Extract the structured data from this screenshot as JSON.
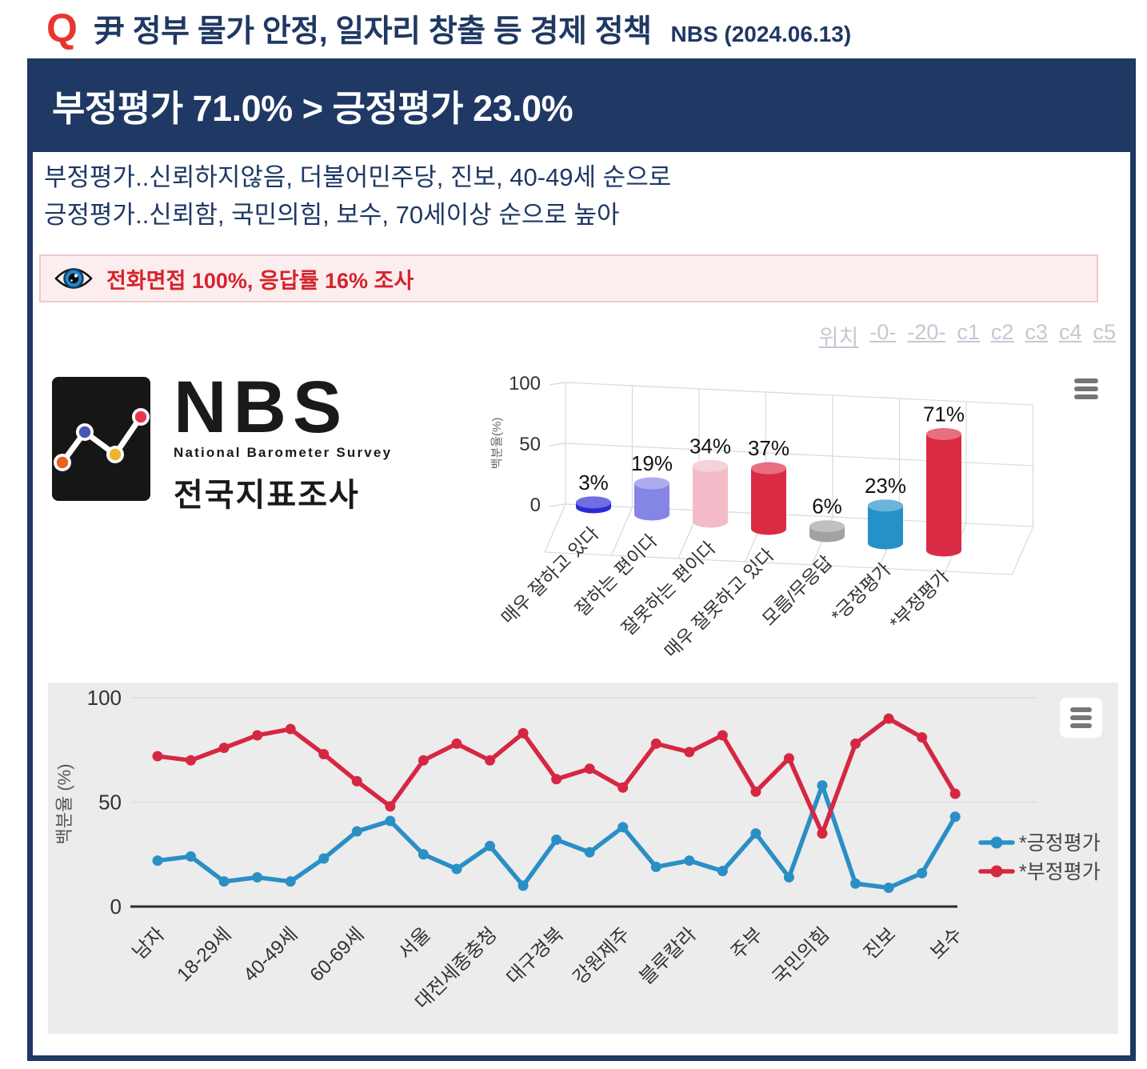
{
  "page": {
    "question_label": "Q",
    "title": "尹 정부 물가 안정, 일자리 창출 등 경제 정책",
    "source": "NBS (2024.06.13)"
  },
  "banner": {
    "text": "부정평가 71.0% > 긍정평가 23.0%"
  },
  "summary": {
    "line1": "부정평가..신뢰하지않음, 더불어민주당, 진보, 40-49세 순으로",
    "line2": "긍정평가..신뢰함, 국민의힘, 보수, 70세이상 순으로 높아"
  },
  "note": {
    "icon": "eye-icon",
    "text": "전화면접 100%, 응답률 16% 조사"
  },
  "nav_links": [
    "위치",
    "-0-",
    "-20-",
    "c1",
    "c2",
    "c3",
    "c4",
    "c5"
  ],
  "logo": {
    "acronym": "NBS",
    "subtitle": "National Barometer Survey",
    "korean": "전국지표조사",
    "dot_colors": [
      "#e8611f",
      "#4656b0",
      "#f2b32c",
      "#e8354b"
    ]
  },
  "colors": {
    "navy": "#1f3864",
    "accent_red": "#e83530",
    "note_red": "#d5232e",
    "positive_blue": "#2a8fc5",
    "negative_red": "#d62742",
    "chart_bg": "#ececec"
  },
  "chart_data": [
    {
      "type": "bar",
      "style": "3d-cylinder",
      "ylabel": "백분율(%)",
      "ylim": [
        0,
        100
      ],
      "yticks": [
        0,
        50,
        100
      ],
      "categories": [
        "매우 잘하고 있다",
        "잘하는 편이다",
        "잘못하는 편이다",
        "매우 잘못하고 있다",
        "모름/무응답",
        "*긍정평가",
        "*부정평가"
      ],
      "values": [
        3,
        19,
        34,
        37,
        6,
        23,
        71
      ],
      "value_labels": [
        "3%",
        "19%",
        "34%",
        "37%",
        "6%",
        "23%",
        "71%"
      ],
      "bar_colors": [
        "#2b2bd6",
        "#8585e6",
        "#f2bbc7",
        "#da2b44",
        "#a2a2a2",
        "#2591c8",
        "#da2b44"
      ],
      "grid": true
    },
    {
      "type": "line",
      "ylabel": "백분율 (%)",
      "ylim": [
        0,
        100
      ],
      "yticks": [
        0,
        50,
        100
      ],
      "x_count": 25,
      "x_tick_positions": [
        0,
        2,
        4,
        6,
        8,
        10,
        12,
        14,
        16,
        18,
        20,
        22,
        24
      ],
      "x_tick_labels": [
        "남자",
        "18-29세",
        "40-49세",
        "60-69세",
        "서울",
        "대전세종충청",
        "대구경북",
        "강원제주",
        "블루칼라",
        "주부",
        "국민의힘",
        "진보",
        "보수"
      ],
      "series": [
        {
          "name": "*긍정평가",
          "color": "#2a8fc5",
          "values": [
            22,
            24,
            12,
            14,
            12,
            23,
            36,
            41,
            25,
            18,
            29,
            10,
            32,
            26,
            38,
            19,
            22,
            17,
            35,
            14,
            58,
            11,
            9,
            16,
            43
          ]
        },
        {
          "name": "*부정평가",
          "color": "#d62742",
          "values": [
            72,
            70,
            76,
            82,
            85,
            73,
            60,
            48,
            70,
            78,
            70,
            83,
            61,
            66,
            57,
            78,
            74,
            82,
            55,
            71,
            35,
            78,
            90,
            81,
            54
          ]
        }
      ],
      "legend_position": "right",
      "grid": true
    }
  ]
}
